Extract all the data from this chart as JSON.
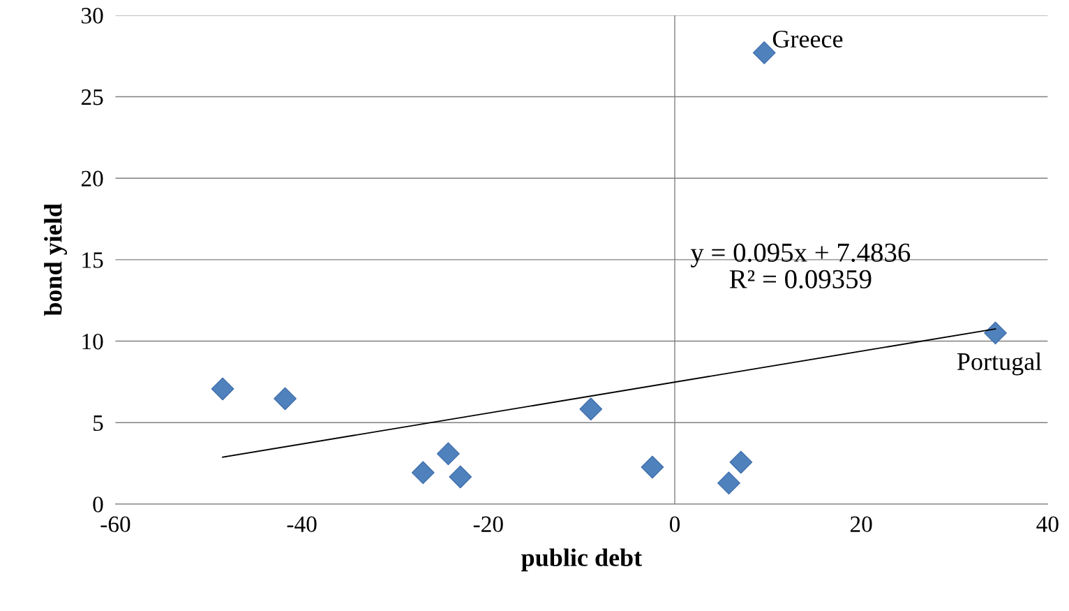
{
  "chart_data": {
    "type": "scatter",
    "xlabel": "public debt",
    "ylabel": "bond yield",
    "xlim": [
      -60,
      40
    ],
    "xticks": [
      -60,
      -40,
      -20,
      0,
      20,
      40
    ],
    "ylim": [
      0,
      30
    ],
    "yticks": [
      0,
      5,
      10,
      15,
      20,
      25,
      30
    ],
    "grid": "y",
    "marker": "diamond",
    "legend": false,
    "series": [
      {
        "color": "#4f81bd",
        "x": [
          -48.5,
          -41.8,
          -27.0,
          -24.3,
          -23.0,
          -9.0,
          -2.4,
          5.8,
          7.1,
          9.6,
          34.4
        ],
        "values": [
          7.07,
          6.47,
          1.93,
          3.09,
          1.67,
          5.83,
          2.27,
          1.29,
          2.57,
          27.7,
          10.5
        ]
      },
      {
        "type": "line",
        "marker": "none",
        "color": "#000000",
        "x": [
          -48.5,
          34.4
        ],
        "values": [
          2.88,
          10.75
        ]
      }
    ],
    "ref_lines": [
      {
        "axis": "x",
        "value": 0,
        "color": "#808080"
      }
    ],
    "annotations": [
      {
        "text": "Greece",
        "x": 9.6,
        "y": 27.7
      },
      {
        "text": "Portugal",
        "x": 34.4,
        "y": 10.5
      },
      "y = 0.095x + 7.4836\nR² = 0.09359"
    ]
  }
}
